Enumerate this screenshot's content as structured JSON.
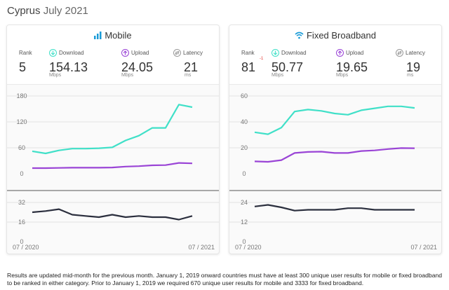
{
  "page": {
    "country": "Cyprus",
    "month": "July 2021"
  },
  "panels": [
    {
      "id": "mobile",
      "title": "Mobile",
      "icon": "signal-bars-icon",
      "metrics": {
        "rank": {
          "label": "Rank",
          "value": "5",
          "delta": ""
        },
        "download": {
          "label": "Download",
          "value": "154.13",
          "unit": "Mbps"
        },
        "upload": {
          "label": "Upload",
          "value": "24.05",
          "unit": "Mbps"
        },
        "latency": {
          "label": "Latency",
          "value": "21",
          "unit": "ms"
        }
      }
    },
    {
      "id": "fixed",
      "title": "Fixed Broadband",
      "icon": "wifi-icon",
      "metrics": {
        "rank": {
          "label": "Rank",
          "value": "81",
          "delta": "-1"
        },
        "download": {
          "label": "Download",
          "value": "50.77",
          "unit": "Mbps"
        },
        "upload": {
          "label": "Upload",
          "value": "19.65",
          "unit": "Mbps"
        },
        "latency": {
          "label": "Latency",
          "value": "19",
          "unit": "ms"
        }
      }
    }
  ],
  "colors": {
    "download": "#40e0c8",
    "upload": "#9a44d6",
    "latency": "#2b2f3e",
    "grid": "#e3e3e3",
    "axis": "#777777"
  },
  "chart_data": [
    {
      "type": "line",
      "panel": "mobile",
      "part": "speed",
      "x": [
        "07 / 2020",
        "08 / 2020",
        "09 / 2020",
        "10 / 2020",
        "11 / 2020",
        "12 / 2020",
        "01 / 2021",
        "02 / 2021",
        "03 / 2021",
        "04 / 2021",
        "05 / 2021",
        "06 / 2021",
        "07 / 2021"
      ],
      "ylim": [
        0,
        180
      ],
      "yticks": [
        "0",
        "60",
        "120",
        "180"
      ],
      "series": [
        {
          "name": "Download",
          "values": [
            52,
            47,
            54,
            58,
            58,
            59,
            61,
            77,
            88,
            106,
            106,
            160,
            154.13
          ]
        },
        {
          "name": "Upload",
          "values": [
            13,
            13,
            13.5,
            14,
            14,
            14,
            14.5,
            16.5,
            17.5,
            19.5,
            20,
            25,
            24.05
          ]
        }
      ]
    },
    {
      "type": "line",
      "panel": "mobile",
      "part": "latency",
      "x": [
        "07 / 2020",
        "08 / 2020",
        "09 / 2020",
        "10 / 2020",
        "11 / 2020",
        "12 / 2020",
        "01 / 2021",
        "02 / 2021",
        "03 / 2021",
        "04 / 2021",
        "05 / 2021",
        "06 / 2021",
        "07 / 2021"
      ],
      "ylim": [
        0,
        32
      ],
      "yticks": [
        "0",
        "16",
        "32"
      ],
      "xticks": [
        "07 / 2020",
        "07 / 2021"
      ],
      "series": [
        {
          "name": "Latency",
          "values": [
            24,
            25,
            26.5,
            22,
            21,
            20,
            22,
            20,
            21,
            20,
            20,
            18,
            21
          ]
        }
      ]
    },
    {
      "type": "line",
      "panel": "fixed",
      "part": "speed",
      "x": [
        "07 / 2020",
        "08 / 2020",
        "09 / 2020",
        "10 / 2020",
        "11 / 2020",
        "12 / 2020",
        "01 / 2021",
        "02 / 2021",
        "03 / 2021",
        "04 / 2021",
        "05 / 2021",
        "06 / 2021",
        "07 / 2021"
      ],
      "ylim": [
        0,
        60
      ],
      "yticks": [
        "0",
        "20",
        "40",
        "60"
      ],
      "series": [
        {
          "name": "Download",
          "values": [
            32,
            30.5,
            35.5,
            48,
            49.5,
            48.5,
            46.5,
            45.5,
            49,
            50.5,
            52,
            52,
            50.77
          ]
        },
        {
          "name": "Upload",
          "values": [
            9.5,
            9.2,
            10.5,
            16,
            16.8,
            17,
            16,
            16,
            17.5,
            18,
            19,
            19.8,
            19.65
          ]
        }
      ]
    },
    {
      "type": "line",
      "panel": "fixed",
      "part": "latency",
      "x": [
        "07 / 2020",
        "08 / 2020",
        "09 / 2020",
        "10 / 2020",
        "11 / 2020",
        "12 / 2020",
        "01 / 2021",
        "02 / 2021",
        "03 / 2021",
        "04 / 2021",
        "05 / 2021",
        "06 / 2021",
        "07 / 2021"
      ],
      "ylim": [
        0,
        24
      ],
      "yticks": [
        "0",
        "12",
        "24"
      ],
      "xticks": [
        "07 / 2020",
        "07 / 2021"
      ],
      "series": [
        {
          "name": "Latency",
          "values": [
            21.5,
            22.5,
            21,
            19,
            19.5,
            19.5,
            19.5,
            20.5,
            20.5,
            19.5,
            19.5,
            19.5,
            19.5
          ]
        }
      ]
    }
  ],
  "footnote": "Results are updated mid-month for the previous month. January 1, 2019 onward countries must have at least 300 unique user results for mobile or fixed broadband to be ranked in either category. Prior to January 1, 2019 we required 670 unique user results for mobile and 3333 for fixed broadband."
}
